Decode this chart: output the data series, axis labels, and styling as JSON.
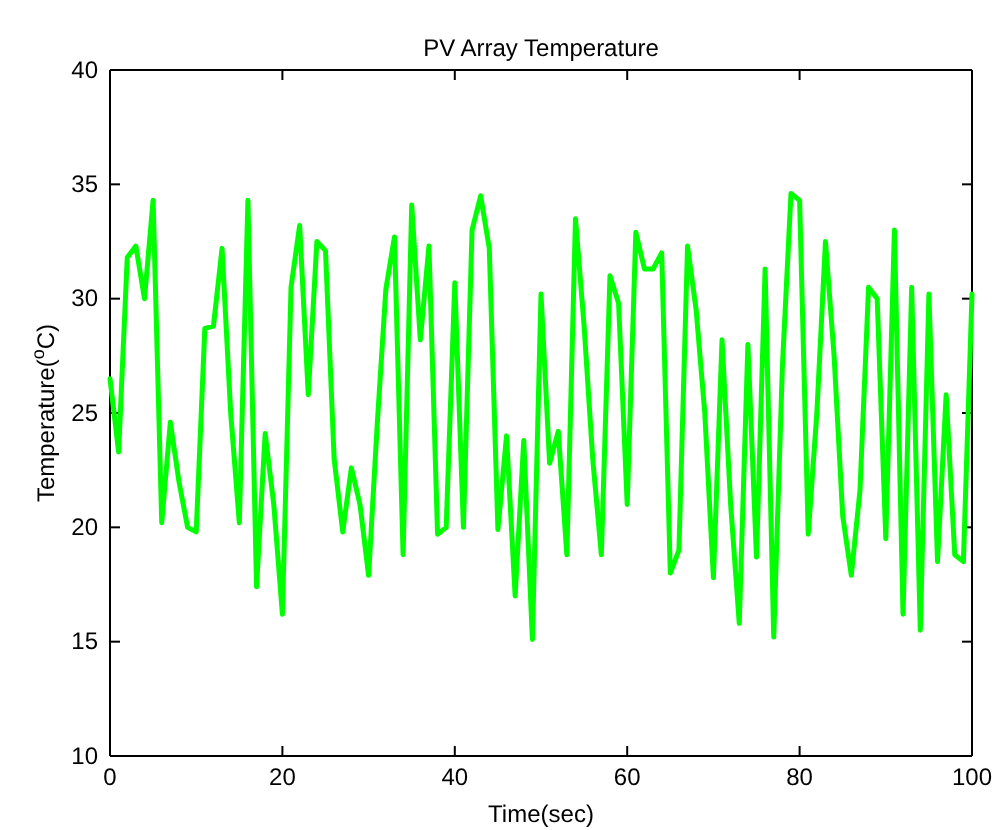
{
  "chart_data": {
    "type": "line",
    "title": "PV Array Temperature",
    "xlabel": "Time(sec)",
    "ylabel": "Temperature($^{o}$C)",
    "x": [
      0,
      1,
      2,
      3,
      4,
      5,
      6,
      7,
      8,
      9,
      10,
      11,
      12,
      13,
      14,
      15,
      16,
      17,
      18,
      19,
      20,
      21,
      22,
      23,
      24,
      25,
      26,
      27,
      28,
      29,
      30,
      31,
      32,
      33,
      34,
      35,
      36,
      37,
      38,
      39,
      40,
      41,
      42,
      43,
      44,
      45,
      46,
      47,
      48,
      49,
      50,
      51,
      52,
      53,
      54,
      55,
      56,
      57,
      58,
      59,
      60,
      61,
      62,
      63,
      64,
      65,
      66,
      67,
      68,
      69,
      70,
      71,
      72,
      73,
      74,
      75,
      76,
      77,
      78,
      79,
      80,
      81,
      82,
      83,
      84,
      85,
      86,
      87,
      88,
      89,
      90,
      91,
      92,
      93,
      94,
      95,
      96,
      97,
      98,
      99,
      100
    ],
    "series": [
      {
        "color": "#00ff00",
        "values": [
          26.5,
          23.3,
          31.8,
          32.3,
          30,
          34.3,
          20.2,
          24.6,
          22,
          20,
          19.8,
          28.7,
          28.8,
          32.2,
          25,
          20.2,
          34.3,
          17.4,
          24.1,
          21,
          16.2,
          30.5,
          33.2,
          25.8,
          32.5,
          32.1,
          23,
          19.8,
          22.6,
          21,
          17.9,
          24.5,
          30.4,
          32.7,
          18.8,
          34.1,
          28.2,
          32.3,
          19.7,
          20,
          30.7,
          20,
          33,
          34.5,
          32.2,
          19.9,
          24,
          17,
          23.8,
          15.1,
          30.2,
          22.8,
          24.2,
          18.8,
          33.5,
          28.8,
          23,
          18.8,
          31,
          29.8,
          21,
          32.9,
          31.3,
          31.3,
          32,
          18,
          19,
          32.3,
          29.5,
          25,
          17.8,
          28.2,
          21,
          15.8,
          28,
          18.7,
          31.3,
          15.2,
          27,
          34.6,
          34.3,
          19.7,
          25,
          32.5,
          27.5,
          20.5,
          17.9,
          21.6,
          30.5,
          30,
          19.5,
          33,
          16.2,
          30.5,
          15.5,
          30.2,
          18.5,
          25.8,
          18.8,
          18.5,
          30.2
        ]
      }
    ],
    "xlim": [
      0,
      100
    ],
    "xticks": [
      0,
      20,
      40,
      60,
      80,
      100
    ],
    "ylim": [
      10,
      40
    ],
    "yticks": [
      10,
      15,
      20,
      25,
      30,
      35,
      40
    ],
    "grid": false,
    "marker": "none",
    "line_style": "solid"
  }
}
